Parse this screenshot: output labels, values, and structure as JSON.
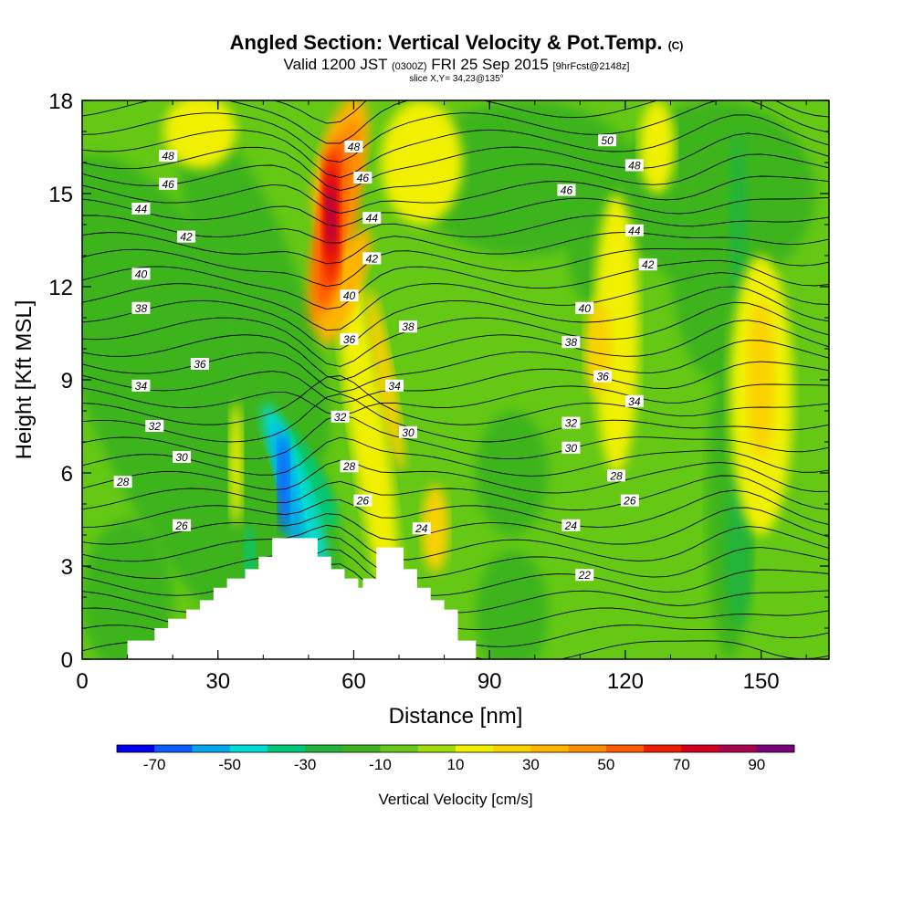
{
  "header": {
    "title": "Angled Section: Vertical Velocity & Pot.Temp.",
    "title_unit": "(C)",
    "valid_prefix": "Valid 1200 JST",
    "valid_utc": "(0300Z)",
    "valid_date": "FRI 25 Sep 2015",
    "forecast": "[9hrFcst@2148z]",
    "slice": "slice X,Y= 34,23@135°"
  },
  "chart_data": {
    "type": "heatmap",
    "title": "Angled Section: Vertical Velocity & Pot.Temp.",
    "xlabel": "Distance [nm]",
    "ylabel": "Height [Kft MSL]",
    "xlim": [
      0,
      165
    ],
    "ylim": [
      0,
      18
    ],
    "x_ticks": [
      0,
      30,
      60,
      90,
      120,
      150
    ],
    "y_ticks": [
      0,
      3,
      6,
      9,
      12,
      15,
      18
    ],
    "colorbar": {
      "label": "Vertical Velocity [cm/s]",
      "tick_labels": [
        -70,
        -50,
        -30,
        -10,
        10,
        30,
        50,
        70,
        90
      ],
      "levels": [
        -80,
        -70,
        -60,
        -50,
        -40,
        -30,
        -20,
        -10,
        0,
        10,
        20,
        30,
        40,
        50,
        60,
        70,
        80,
        90,
        100
      ],
      "colors": [
        "#0000ee",
        "#0a5cff",
        "#00a8f0",
        "#00dcd8",
        "#00c878",
        "#22b43a",
        "#3cb41e",
        "#64c814",
        "#a0dc0a",
        "#f0f000",
        "#fad200",
        "#ffb400",
        "#ff8c00",
        "#ff5a00",
        "#f01e00",
        "#d2001e",
        "#aa0050",
        "#780078"
      ]
    },
    "contour_field": "Potential Temperature (C)",
    "contour_labels": [
      {
        "text": "48",
        "x": 19,
        "y": 16.2
      },
      {
        "text": "46",
        "x": 19,
        "y": 15.3
      },
      {
        "text": "44",
        "x": 13,
        "y": 14.5
      },
      {
        "text": "42",
        "x": 23,
        "y": 13.6
      },
      {
        "text": "40",
        "x": 13,
        "y": 12.4
      },
      {
        "text": "38",
        "x": 13,
        "y": 11.3
      },
      {
        "text": "36",
        "x": 26,
        "y": 9.5
      },
      {
        "text": "34",
        "x": 13,
        "y": 8.8
      },
      {
        "text": "32",
        "x": 16,
        "y": 7.5
      },
      {
        "text": "30",
        "x": 22,
        "y": 6.5
      },
      {
        "text": "28",
        "x": 9,
        "y": 5.7
      },
      {
        "text": "26",
        "x": 22,
        "y": 4.3
      },
      {
        "text": "48",
        "x": 60,
        "y": 16.5
      },
      {
        "text": "46",
        "x": 62,
        "y": 15.5
      },
      {
        "text": "44",
        "x": 64,
        "y": 14.2
      },
      {
        "text": "42",
        "x": 64,
        "y": 12.9
      },
      {
        "text": "40",
        "x": 59,
        "y": 11.7
      },
      {
        "text": "38",
        "x": 72,
        "y": 10.7
      },
      {
        "text": "36",
        "x": 59,
        "y": 10.3
      },
      {
        "text": "34",
        "x": 69,
        "y": 8.8
      },
      {
        "text": "32",
        "x": 57,
        "y": 7.8
      },
      {
        "text": "30",
        "x": 72,
        "y": 7.3
      },
      {
        "text": "28",
        "x": 59,
        "y": 6.2
      },
      {
        "text": "26",
        "x": 62,
        "y": 5.1
      },
      {
        "text": "24",
        "x": 75,
        "y": 4.2
      },
      {
        "text": "50",
        "x": 116,
        "y": 16.7
      },
      {
        "text": "48",
        "x": 122,
        "y": 15.9
      },
      {
        "text": "46",
        "x": 107,
        "y": 15.1
      },
      {
        "text": "44",
        "x": 122,
        "y": 13.8
      },
      {
        "text": "42",
        "x": 125,
        "y": 12.7
      },
      {
        "text": "40",
        "x": 111,
        "y": 11.3
      },
      {
        "text": "38",
        "x": 108,
        "y": 10.2
      },
      {
        "text": "36",
        "x": 115,
        "y": 9.1
      },
      {
        "text": "34",
        "x": 122,
        "y": 8.3
      },
      {
        "text": "32",
        "x": 108,
        "y": 7.6
      },
      {
        "text": "30",
        "x": 108,
        "y": 6.8
      },
      {
        "text": "28",
        "x": 118,
        "y": 5.9
      },
      {
        "text": "26",
        "x": 121,
        "y": 5.1
      },
      {
        "text": "24",
        "x": 108,
        "y": 4.3
      },
      {
        "text": "22",
        "x": 111,
        "y": 2.7
      }
    ],
    "terrain_profile": [
      [
        0,
        0
      ],
      [
        10,
        0
      ],
      [
        10,
        0.6
      ],
      [
        16,
        0.6
      ],
      [
        16,
        1
      ],
      [
        19,
        1
      ],
      [
        19,
        1.3
      ],
      [
        23,
        1.3
      ],
      [
        23,
        1.6
      ],
      [
        26,
        1.6
      ],
      [
        26,
        1.9
      ],
      [
        29,
        1.9
      ],
      [
        29,
        2.3
      ],
      [
        32,
        2.3
      ],
      [
        32,
        2.6
      ],
      [
        36,
        2.6
      ],
      [
        36,
        2.9
      ],
      [
        39,
        2.9
      ],
      [
        39,
        3.3
      ],
      [
        42,
        3.3
      ],
      [
        42,
        3.9
      ],
      [
        52,
        3.9
      ],
      [
        52,
        3.3
      ],
      [
        55,
        3.3
      ],
      [
        55,
        2.9
      ],
      [
        58,
        2.9
      ],
      [
        58,
        2.6
      ],
      [
        61,
        2.6
      ],
      [
        61,
        2.3
      ],
      [
        62,
        2.3
      ],
      [
        62,
        2.6
      ],
      [
        65,
        2.6
      ],
      [
        65,
        3.6
      ],
      [
        71,
        3.6
      ],
      [
        71,
        2.9
      ],
      [
        74,
        2.9
      ],
      [
        74,
        2.3
      ],
      [
        77,
        2.3
      ],
      [
        77,
        1.9
      ],
      [
        80,
        1.9
      ],
      [
        80,
        1.6
      ],
      [
        83,
        1.6
      ],
      [
        83,
        0.6
      ],
      [
        87,
        0.6
      ],
      [
        87,
        0
      ],
      [
        165,
        0
      ]
    ]
  }
}
